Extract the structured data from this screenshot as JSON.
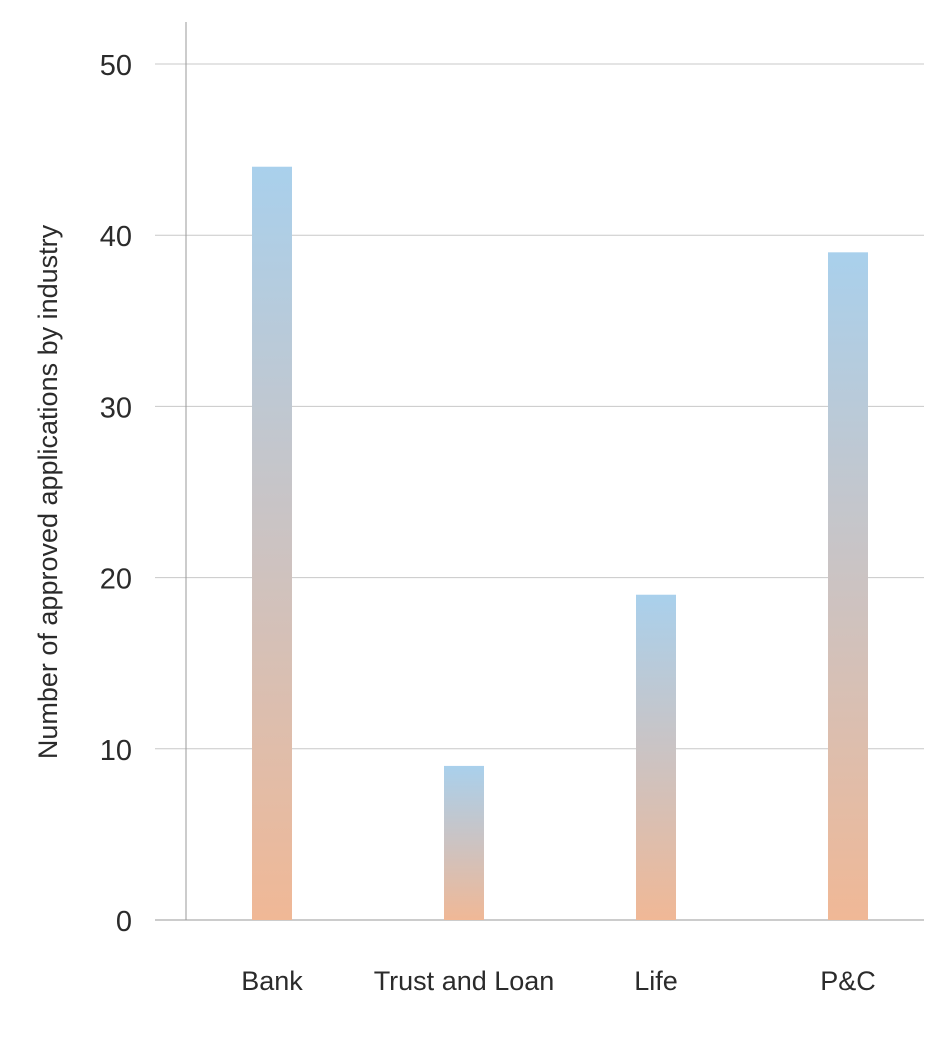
{
  "chart_data": {
    "type": "bar",
    "title": "",
    "xlabel": "",
    "ylabel": "Number of approved applications by industry",
    "categories": [
      "Bank",
      "Trust and Loan",
      "Life",
      "P&C"
    ],
    "values": [
      44,
      9,
      19,
      39
    ],
    "ylim": [
      0,
      50
    ],
    "yticks": [
      "0",
      "10",
      "20",
      "30",
      "40",
      "50"
    ],
    "grid": true,
    "legend": "none",
    "colors": {
      "bar_top": "#a9d0ec",
      "bar_bottom": "#f0b896",
      "grid": "#c8c8c8",
      "axis": "#9a9a9a",
      "text": "#2b2b2b"
    }
  }
}
